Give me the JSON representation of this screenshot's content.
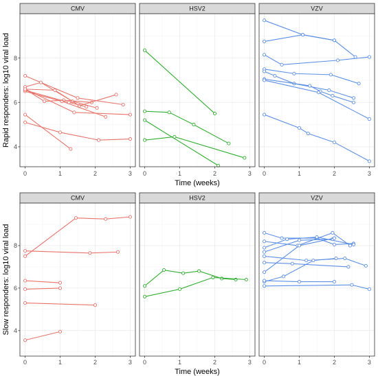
{
  "chart_data": {
    "type": "line",
    "facet_columns": [
      "CMV",
      "HSV2",
      "VZV"
    ],
    "colors": {
      "CMV": "#e8736a",
      "HSV2": "#2fae2f",
      "VZV": "#5b8fe6"
    },
    "xlim": [
      0,
      3
    ],
    "x_ticks": [
      "0",
      "1",
      "2",
      "3"
    ],
    "xlabel": "Time (weeks)",
    "rows": [
      {
        "ylabel": "Rapid responders: log10 viral load",
        "ylim": [
          3.1,
          10.0
        ],
        "y_ticks": [
          "4",
          "6",
          "8"
        ],
        "panels": {
          "CMV": [
            {
              "x": [
                0,
                1.0,
                2.1,
                3.0
              ],
              "y": [
                5.1,
                4.65,
                4.3,
                4.35
              ]
            },
            {
              "x": [
                0,
                1.3
              ],
              "y": [
                5.45,
                3.9
              ]
            },
            {
              "x": [
                0,
                1.5,
                2.8
              ],
              "y": [
                7.2,
                6.2,
                5.9
              ]
            },
            {
              "x": [
                0,
                0.55,
                1.1,
                1.9
              ],
              "y": [
                6.6,
                6.05,
                6.1,
                6.0
              ]
            },
            {
              "x": [
                0,
                0.45,
                1.35,
                2.05
              ],
              "y": [
                6.7,
                6.9,
                6.05,
                5.75
              ]
            },
            {
              "x": [
                0,
                1.05,
                2.3
              ],
              "y": [
                6.5,
                6.05,
                5.35
              ]
            },
            {
              "x": [
                0,
                0.85,
                1.55,
                2.6
              ],
              "y": [
                6.6,
                6.55,
                5.85,
                6.35
              ]
            },
            {
              "x": [
                0,
                1.25,
                1.75
              ],
              "y": [
                6.55,
                6.0,
                5.8
              ]
            },
            {
              "x": [
                0,
                1.4,
                3.0
              ],
              "y": [
                6.6,
                5.55,
                5.45
              ]
            }
          ],
          "HSV2": [
            {
              "x": [
                0,
                2.0
              ],
              "y": [
                8.35,
                5.5
              ]
            },
            {
              "x": [
                0,
                0.7,
                1.4,
                2.4
              ],
              "y": [
                5.6,
                5.55,
                5.0,
                4.15
              ]
            },
            {
              "x": [
                0,
                2.1
              ],
              "y": [
                5.2,
                3.15
              ]
            },
            {
              "x": [
                0,
                0.85,
                2.85
              ],
              "y": [
                4.3,
                4.45,
                3.5
              ]
            }
          ],
          "VZV": [
            {
              "x": [
                0,
                1.1,
                2.0,
                2.6
              ],
              "y": [
                9.7,
                9.05,
                8.8,
                8.05
              ]
            },
            {
              "x": [
                0,
                1.1,
                2.0
              ],
              "y": [
                8.75,
                9.05,
                8.8
              ]
            },
            {
              "x": [
                0,
                0.5,
                2.1,
                3.0
              ],
              "y": [
                8.15,
                7.7,
                7.9,
                8.05
              ]
            },
            {
              "x": [
                0,
                0.85,
                1.9,
                2.7
              ],
              "y": [
                7.5,
                7.3,
                7.25,
                6.85
              ]
            },
            {
              "x": [
                0,
                0.3,
                0.85,
                1.85,
                2.55
              ],
              "y": [
                7.4,
                7.2,
                6.85,
                6.55,
                6.2
              ]
            },
            {
              "x": [
                0,
                1.3,
                1.6,
                1.95,
                2.55
              ],
              "y": [
                7.05,
                6.75,
                6.5,
                6.3,
                6.0
              ]
            },
            {
              "x": [
                0,
                1.55,
                3.0
              ],
              "y": [
                7.0,
                6.45,
                5.25
              ]
            },
            {
              "x": [
                0,
                1.0,
                1.25,
                2.0,
                3.0
              ],
              "y": [
                5.45,
                4.85,
                4.6,
                4.2,
                3.35
              ]
            }
          ]
        }
      },
      {
        "ylabel": "Slow responders: log10 viral load",
        "ylim": [
          2.8,
          10.0
        ],
        "y_ticks": [
          "4",
          "6",
          "8"
        ],
        "panels": {
          "CMV": [
            {
              "x": [
                0,
                1.45,
                2.3,
                3.0
              ],
              "y": [
                7.5,
                9.3,
                9.25,
                9.35
              ]
            },
            {
              "x": [
                0,
                1.85,
                2.65
              ],
              "y": [
                7.75,
                7.65,
                7.7
              ]
            },
            {
              "x": [
                0,
                1.0
              ],
              "y": [
                6.35,
                6.25
              ]
            },
            {
              "x": [
                0,
                1.0
              ],
              "y": [
                5.95,
                6.0
              ]
            },
            {
              "x": [
                0,
                2.0
              ],
              "y": [
                5.3,
                5.2
              ]
            },
            {
              "x": [
                0,
                1.0
              ],
              "y": [
                3.55,
                3.95
              ]
            }
          ],
          "HSV2": [
            {
              "x": [
                0,
                0.55,
                1.1,
                1.55,
                2.2,
                2.6
              ],
              "y": [
                6.1,
                6.85,
                6.7,
                6.8,
                6.45,
                6.4
              ]
            },
            {
              "x": [
                0,
                1.0,
                1.95,
                2.9
              ],
              "y": [
                5.6,
                5.95,
                6.5,
                6.4
              ]
            }
          ],
          "VZV": [
            {
              "x": [
                0,
                0.5,
                1.5,
                2.0,
                2.55
              ],
              "y": [
                8.6,
                8.35,
                8.35,
                8.05,
                8.1
              ]
            },
            {
              "x": [
                0,
                0.95,
                1.95,
                2.45
              ],
              "y": [
                8.2,
                8.0,
                8.6,
                8.0
              ]
            },
            {
              "x": [
                0,
                0.65,
                1.5,
                2.55
              ],
              "y": [
                7.9,
                8.3,
                8.4,
                8.05
              ]
            },
            {
              "x": [
                0,
                1.0,
                1.95
              ],
              "y": [
                7.7,
                8.25,
                8.3
              ]
            },
            {
              "x": [
                0,
                1.2,
                2.3,
                2.9
              ],
              "y": [
                7.5,
                7.3,
                7.4,
                7.05
              ]
            },
            {
              "x": [
                0,
                0.8,
                2.4
              ],
              "y": [
                7.2,
                7.15,
                7.0
              ]
            },
            {
              "x": [
                0,
                1.0,
                2.0
              ],
              "y": [
                6.75,
                8.0,
                8.35
              ]
            },
            {
              "x": [
                0,
                0.55,
                1.4,
                2.05
              ],
              "y": [
                6.3,
                6.55,
                7.3,
                7.4
              ]
            },
            {
              "x": [
                0,
                1.0,
                2.0
              ],
              "y": [
                6.35,
                6.3,
                6.3
              ]
            },
            {
              "x": [
                0,
                2.5,
                3.0
              ],
              "y": [
                6.1,
                6.15,
                5.95
              ]
            }
          ]
        }
      }
    ]
  }
}
